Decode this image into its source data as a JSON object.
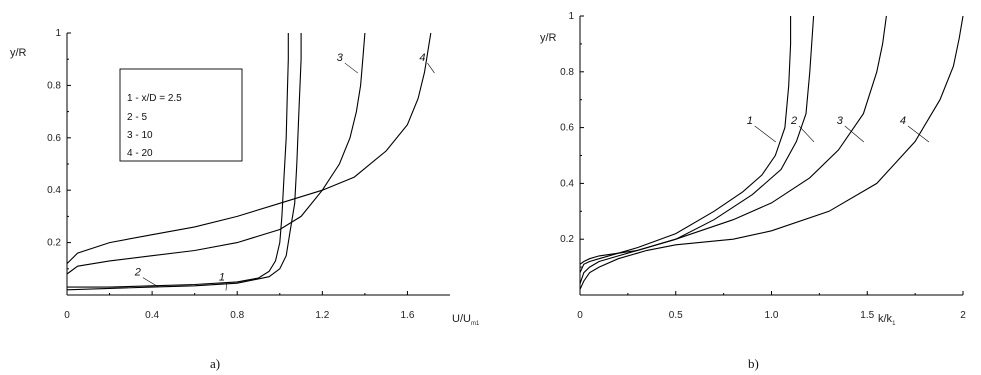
{
  "chart_data": [
    {
      "type": "line",
      "panel_label": "a)",
      "xlabel": "U/U",
      "xlabel_sub": "m1",
      "ylabel": "y/R",
      "xlim": [
        0,
        1.8
      ],
      "ylim": [
        0,
        1
      ],
      "xticks": [
        "0",
        "0.4",
        "0.8",
        "1.2",
        "1.6"
      ],
      "xtick_values": [
        0,
        0.4,
        0.8,
        1.2,
        1.6
      ],
      "yticks": [
        "0.2",
        "0.4",
        "0.6",
        "0.8",
        "1"
      ],
      "ytick_values": [
        0.2,
        0.4,
        0.6,
        0.8,
        1.0
      ],
      "legend_title": "1 - x/D = 2.5",
      "legend": [
        "1 - x/D = 2.5",
        "2 - 5",
        "3 - 10",
        "4 - 20"
      ],
      "series": [
        {
          "name": "1",
          "x": [
            0,
            0.2,
            0.4,
            0.6,
            0.8,
            0.9,
            0.95,
            0.98,
            1.0,
            1.01,
            1.02,
            1.03,
            1.035,
            1.04,
            1.04
          ],
          "y": [
            0.03,
            0.03,
            0.035,
            0.04,
            0.05,
            0.065,
            0.09,
            0.13,
            0.2,
            0.3,
            0.45,
            0.6,
            0.75,
            0.9,
            1.0
          ]
        },
        {
          "name": "2",
          "x": [
            0,
            0.2,
            0.4,
            0.6,
            0.8,
            0.95,
            1.0,
            1.03,
            1.05,
            1.07,
            1.08,
            1.09,
            1.1,
            1.1
          ],
          "y": [
            0.02,
            0.025,
            0.03,
            0.035,
            0.045,
            0.07,
            0.1,
            0.15,
            0.25,
            0.35,
            0.5,
            0.7,
            0.9,
            1.0
          ]
        },
        {
          "name": "3",
          "x": [
            0,
            0.05,
            0.2,
            0.4,
            0.6,
            0.8,
            1.0,
            1.1,
            1.2,
            1.28,
            1.33,
            1.36,
            1.38,
            1.39,
            1.4
          ],
          "y": [
            0.08,
            0.11,
            0.13,
            0.15,
            0.17,
            0.2,
            0.25,
            0.3,
            0.4,
            0.5,
            0.6,
            0.7,
            0.8,
            0.9,
            1.0
          ]
        },
        {
          "name": "4",
          "x": [
            0,
            0.05,
            0.2,
            0.4,
            0.6,
            0.8,
            1.0,
            1.2,
            1.35,
            1.5,
            1.6,
            1.65,
            1.68,
            1.7,
            1.71
          ],
          "y": [
            0.12,
            0.16,
            0.2,
            0.23,
            0.26,
            0.3,
            0.35,
            0.4,
            0.45,
            0.55,
            0.65,
            0.75,
            0.85,
            0.95,
            1.0
          ]
        }
      ],
      "curve_labels": [
        {
          "text": "1",
          "x": 0.7,
          "y": 0.04
        },
        {
          "text": "2",
          "x": 0.38,
          "y": 0.055
        },
        {
          "text": "3",
          "x": 1.32,
          "y": 0.87
        },
        {
          "text": "4",
          "x": 1.68,
          "y": 0.87
        }
      ]
    },
    {
      "type": "line",
      "panel_label": "b)",
      "xlabel": "k/k",
      "xlabel_sub": "1",
      "ylabel": "y/R",
      "xlim": [
        0,
        2
      ],
      "ylim": [
        0,
        1
      ],
      "xticks": [
        "0",
        "0.5",
        "1.0",
        "1.5",
        "2"
      ],
      "xtick_values": [
        0,
        0.5,
        1.0,
        1.5,
        2.0
      ],
      "yticks": [
        "0.2",
        "0.4",
        "0.6",
        "0.8",
        "1"
      ],
      "ytick_values": [
        0.2,
        0.4,
        0.6,
        0.8,
        1.0
      ],
      "series": [
        {
          "name": "1",
          "x": [
            0,
            0.02,
            0.05,
            0.1,
            0.2,
            0.3,
            0.5,
            0.7,
            0.85,
            0.95,
            1.02,
            1.07,
            1.09,
            1.1,
            1.1
          ],
          "y": [
            0.08,
            0.11,
            0.12,
            0.13,
            0.15,
            0.17,
            0.22,
            0.3,
            0.37,
            0.43,
            0.5,
            0.6,
            0.75,
            0.9,
            1.0
          ]
        },
        {
          "name": "2",
          "x": [
            0,
            0.02,
            0.05,
            0.1,
            0.2,
            0.3,
            0.5,
            0.7,
            0.9,
            1.05,
            1.13,
            1.18,
            1.2,
            1.21,
            1.22
          ],
          "y": [
            0.11,
            0.12,
            0.13,
            0.14,
            0.15,
            0.16,
            0.2,
            0.27,
            0.36,
            0.45,
            0.55,
            0.65,
            0.8,
            0.9,
            1.0
          ]
        },
        {
          "name": "3",
          "x": [
            0,
            0.02,
            0.05,
            0.1,
            0.2,
            0.3,
            0.5,
            0.8,
            1.0,
            1.2,
            1.35,
            1.48,
            1.55,
            1.58,
            1.6
          ],
          "y": [
            0.04,
            0.08,
            0.1,
            0.12,
            0.14,
            0.16,
            0.2,
            0.27,
            0.33,
            0.42,
            0.52,
            0.65,
            0.8,
            0.9,
            1.0
          ]
        },
        {
          "name": "4",
          "x": [
            0,
            0.02,
            0.05,
            0.1,
            0.2,
            0.35,
            0.5,
            0.8,
            1.0,
            1.3,
            1.55,
            1.75,
            1.88,
            1.95,
            1.98,
            2.0
          ],
          "y": [
            0.02,
            0.05,
            0.08,
            0.1,
            0.13,
            0.16,
            0.18,
            0.2,
            0.23,
            0.3,
            0.4,
            0.55,
            0.7,
            0.82,
            0.92,
            1.0
          ]
        }
      ],
      "curve_labels": [
        {
          "text": "1",
          "x": 0.97,
          "y": 0.57
        },
        {
          "text": "2",
          "x": 1.17,
          "y": 0.57
        },
        {
          "text": "3",
          "x": 1.43,
          "y": 0.57
        },
        {
          "text": "4",
          "x": 1.77,
          "y": 0.57
        }
      ]
    }
  ]
}
